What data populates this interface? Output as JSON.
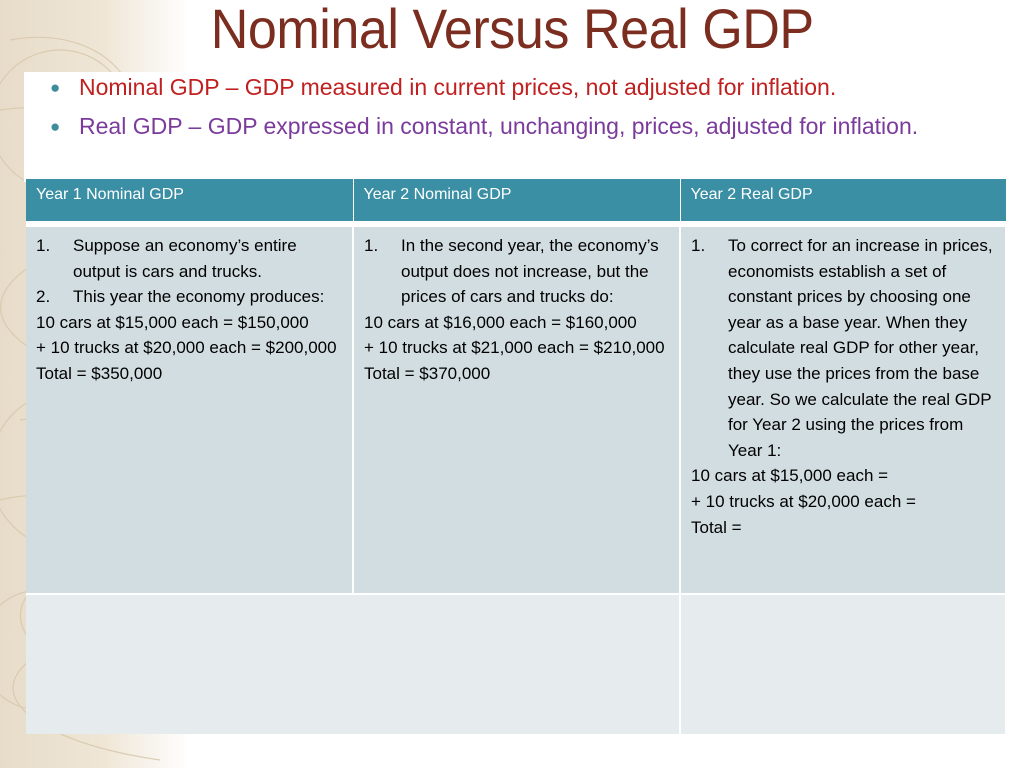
{
  "title": "Nominal Versus Real GDP",
  "bullets": [
    "Nominal GDP – GDP measured in current prices, not adjusted for inflation.",
    "Real GDP – GDP expressed in constant, unchanging, prices, adjusted for inflation."
  ],
  "colors": {
    "title": "#7b2d20",
    "bullet_1": "#c0201f",
    "bullet_2": "#7a3b9c",
    "header_bg": "#3b8fa4",
    "cell_bg": "#d2dde1"
  },
  "table": {
    "headers": [
      "Year 1 Nominal GDP",
      "Year 2 Nominal GDP",
      "Year 2 Real GDP"
    ],
    "col1": {
      "items": [
        {
          "num": "1.",
          "text": "Suppose an economy’s entire output is cars and trucks."
        },
        {
          "num": "2.",
          "text": "This year the economy produces:"
        }
      ],
      "lines": [
        "10 cars at $15,000 each = $150,000",
        "+ 10 trucks at $20,000 each = $200,000",
        "Total = $350,000"
      ]
    },
    "col2": {
      "items": [
        {
          "num": "1.",
          "text": "In the second year, the economy’s output does not increase, but the prices of cars and trucks do:"
        }
      ],
      "lines": [
        "10 cars at $16,000 each = $160,000",
        "+ 10 trucks at $21,000 each = $210,000",
        "Total = $370,000"
      ]
    },
    "col3": {
      "items": [
        {
          "num": "1.",
          "text": "To correct for an increase in prices, economists establish a set of constant prices by choosing one year as a base year. When they calculate real GDP for other year, they use the prices from the base year. So we calculate the real GDP for Year 2 using the prices from Year 1:"
        }
      ],
      "lines": [
        "10 cars at $15,000 each =",
        "+ 10 trucks at $20,000 each =",
        "Total ="
      ]
    }
  }
}
